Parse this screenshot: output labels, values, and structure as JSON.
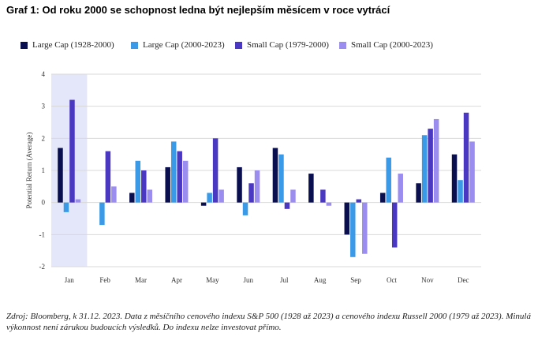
{
  "title": "Graf 1: Od roku 2000 se schopnost ledna být nejlepším měsícem v roce vytrácí",
  "footer": "Zdroj: Bloomberg, k 31.12. 2023. Data z měsíčního cenového indexu S&P 500 (1928 až 2023) a cenového indexu Russell 2000 (1979 až 2023). Minulá výkonnost není zárukou budoucích výsledků. Do indexu nelze investovat přímo.",
  "chart_data": {
    "type": "bar",
    "title": "Graf 1: Od roku 2000 se schopnost ledna být nejlepším měsícem v roce vytrácí",
    "xlabel": "",
    "ylabel": "Potential Return (Average)",
    "ylim": [
      -2,
      4
    ],
    "yticks": [
      "-2",
      "-1",
      "0",
      "1",
      "2",
      "3",
      "4"
    ],
    "grid": true,
    "legend_position": "top",
    "highlight_category": "Jan",
    "categories": [
      "Jan",
      "Feb",
      "Mar",
      "Apr",
      "May",
      "Jun",
      "Jul",
      "Aug",
      "Sep",
      "Oct",
      "Nov",
      "Dec"
    ],
    "series": [
      {
        "name": "Large Cap (1928-2000)",
        "color": "#0a0f4f",
        "values": [
          1.7,
          0.0,
          0.3,
          1.1,
          -0.1,
          1.1,
          1.7,
          0.9,
          -1.0,
          0.3,
          0.6,
          1.5
        ]
      },
      {
        "name": "Large Cap (2000-2023)",
        "color": "#3b9ae8",
        "values": [
          -0.3,
          -0.7,
          1.3,
          1.9,
          0.3,
          -0.4,
          1.5,
          0.0,
          -1.7,
          1.4,
          2.1,
          0.7
        ]
      },
      {
        "name": "Small Cap (1979-2000)",
        "color": "#4a37c2",
        "values": [
          3.2,
          1.6,
          1.0,
          1.6,
          2.0,
          0.6,
          -0.2,
          0.4,
          0.1,
          -1.4,
          2.3,
          2.8
        ]
      },
      {
        "name": "Small Cap (2000-2023)",
        "color": "#9b8cf0",
        "values": [
          0.1,
          0.5,
          0.4,
          1.3,
          0.4,
          1.0,
          0.4,
          -0.1,
          -1.6,
          0.9,
          2.6,
          1.9
        ]
      }
    ]
  }
}
